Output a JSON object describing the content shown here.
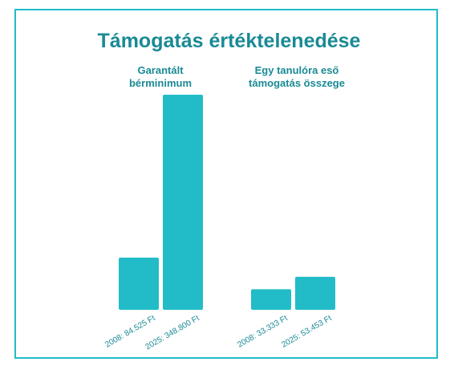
{
  "title": "Támogatás értéktelenedése",
  "colors": {
    "accent": "#22bcc8",
    "title": "#1a8a95"
  },
  "chart_data": {
    "type": "bar",
    "title": "Támogatás értéktelenedése",
    "groups": [
      {
        "name_lines": [
          "Garantált",
          "bérminimum"
        ],
        "bars": [
          {
            "label": "2008: 84.525 Ft",
            "value": 84525
          },
          {
            "label": "2025: 348.800 Ft",
            "value": 348800
          }
        ]
      },
      {
        "name_lines": [
          "Egy tanulóra eső",
          "támogatás összege"
        ],
        "bars": [
          {
            "label": "2008: 33.333 Ft",
            "value": 33333
          },
          {
            "label": "2025: 53.453 Ft",
            "value": 53453
          }
        ]
      }
    ]
  }
}
